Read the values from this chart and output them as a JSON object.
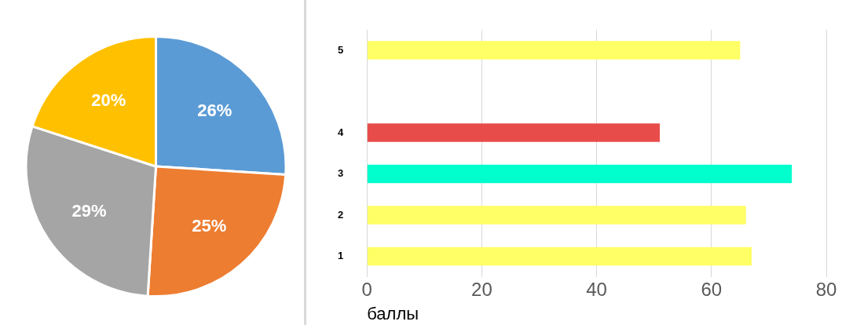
{
  "chart_data": [
    {
      "type": "pie",
      "categories": [
        null,
        null,
        null,
        null
      ],
      "values": [
        26,
        25,
        29,
        20
      ],
      "colors": [
        "#5b9bd5",
        "#ed7d31",
        "#a5a5a5",
        "#ffc000"
      ],
      "value_labels": [
        "26%",
        "25%",
        "29%",
        "20%"
      ]
    },
    {
      "type": "bar",
      "orientation": "horizontal",
      "categories": [
        "5",
        null,
        "4",
        "3",
        "2",
        "1"
      ],
      "values": [
        65,
        null,
        51,
        74,
        66,
        67
      ],
      "colors": [
        "#ffff66",
        "#ffff66",
        "#e84c4a",
        "#00ffcc",
        "#ffff66",
        "#ffff66"
      ],
      "xlim": [
        0,
        80
      ],
      "xticks": [
        0,
        20,
        40,
        60,
        80
      ],
      "xlabel": "баллы",
      "grid": "x"
    }
  ]
}
